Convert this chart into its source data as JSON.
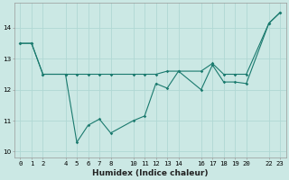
{
  "xlabel": "Humidex (Indice chaleur)",
  "bg_color": "#cbe8e4",
  "grid_color": "#b0d8d4",
  "line_color": "#1a7a6e",
  "line1_x": [
    0,
    1,
    2,
    4,
    5,
    6,
    7,
    8,
    10,
    11,
    12,
    13,
    14,
    16,
    17,
    18,
    19,
    20,
    22,
    23
  ],
  "line1_y": [
    13.5,
    13.5,
    12.5,
    12.5,
    10.3,
    10.85,
    11.05,
    10.6,
    11.0,
    11.15,
    12.2,
    12.05,
    12.6,
    12.0,
    12.8,
    12.25,
    12.25,
    12.2,
    14.15,
    14.5
  ],
  "line2_x": [
    0,
    1,
    2,
    4,
    5,
    6,
    7,
    8,
    10,
    11,
    12,
    13,
    14,
    16,
    17,
    18,
    19,
    20,
    22,
    23
  ],
  "line2_y": [
    13.5,
    13.5,
    12.5,
    12.5,
    12.5,
    12.5,
    12.5,
    12.5,
    12.5,
    12.5,
    12.5,
    12.6,
    12.6,
    12.6,
    12.85,
    12.5,
    12.5,
    12.5,
    14.15,
    14.5
  ],
  "xlim": [
    -0.5,
    23.5
  ],
  "ylim": [
    9.8,
    14.8
  ],
  "xtick_vals": [
    0,
    1,
    2,
    4,
    5,
    6,
    7,
    8,
    10,
    11,
    12,
    13,
    14,
    16,
    17,
    18,
    19,
    20,
    22,
    23
  ],
  "xtick_labels": [
    "0",
    "1",
    "2",
    "4",
    "5",
    "6",
    "7",
    "8",
    "10",
    "11",
    "12",
    "13",
    "14",
    "16",
    "17",
    "18",
    "19",
    "20",
    "22",
    "23"
  ],
  "yticks": [
    10,
    11,
    12,
    13,
    14
  ],
  "label_fontsize": 6.5,
  "tick_fontsize": 5.2
}
